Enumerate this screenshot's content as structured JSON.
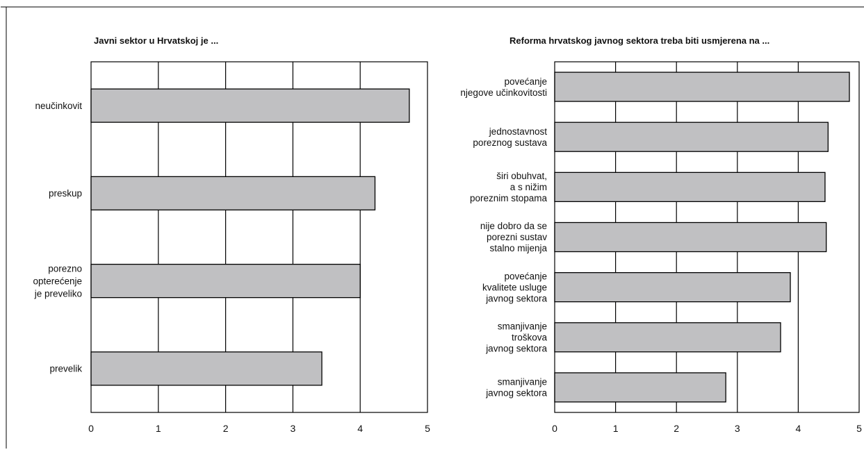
{
  "colors": {
    "bar_fill": "#c0c0c2",
    "bar_stroke": "#000000",
    "grid": "#000000",
    "text": "#111111"
  },
  "chart_data": [
    {
      "type": "bar",
      "orientation": "horizontal",
      "title": "Javni sektor u Hrvatskoj je ...",
      "categories": [
        [
          "neučinkovit"
        ],
        [
          "preskup"
        ],
        [
          "porezno",
          "opterećenje",
          "je preveliko"
        ],
        [
          "prevelik"
        ]
      ],
      "values": [
        4.73,
        4.22,
        4.0,
        3.43
      ],
      "xlim": [
        0,
        5
      ],
      "xticks": [
        "0",
        "1",
        "2",
        "3",
        "4",
        "5"
      ],
      "grid": true
    },
    {
      "type": "bar",
      "orientation": "horizontal",
      "title": "Reforma hrvatskog javnog sektora treba biti usmjerena na ...",
      "categories": [
        [
          "povećanje",
          "njegove učinkovitosti"
        ],
        [
          "jednostavnost",
          "poreznog sustava"
        ],
        [
          "širi obuhvat,",
          "a s nižim",
          "poreznim stopama"
        ],
        [
          "nije dobro da se",
          "porezni sustav",
          "stalno mijenja"
        ],
        [
          "povećanje",
          "kvalitete usluge",
          "javnog sektora"
        ],
        [
          "smanjivanje",
          "troškova",
          "javnog sektora"
        ],
        [
          "smanjivanje",
          "javnog sektora"
        ]
      ],
      "values": [
        4.84,
        4.49,
        4.44,
        4.46,
        3.87,
        3.71,
        2.81
      ],
      "xlim": [
        0,
        5
      ],
      "xticks": [
        "0",
        "1",
        "2",
        "3",
        "4",
        "5"
      ],
      "grid": true
    }
  ]
}
